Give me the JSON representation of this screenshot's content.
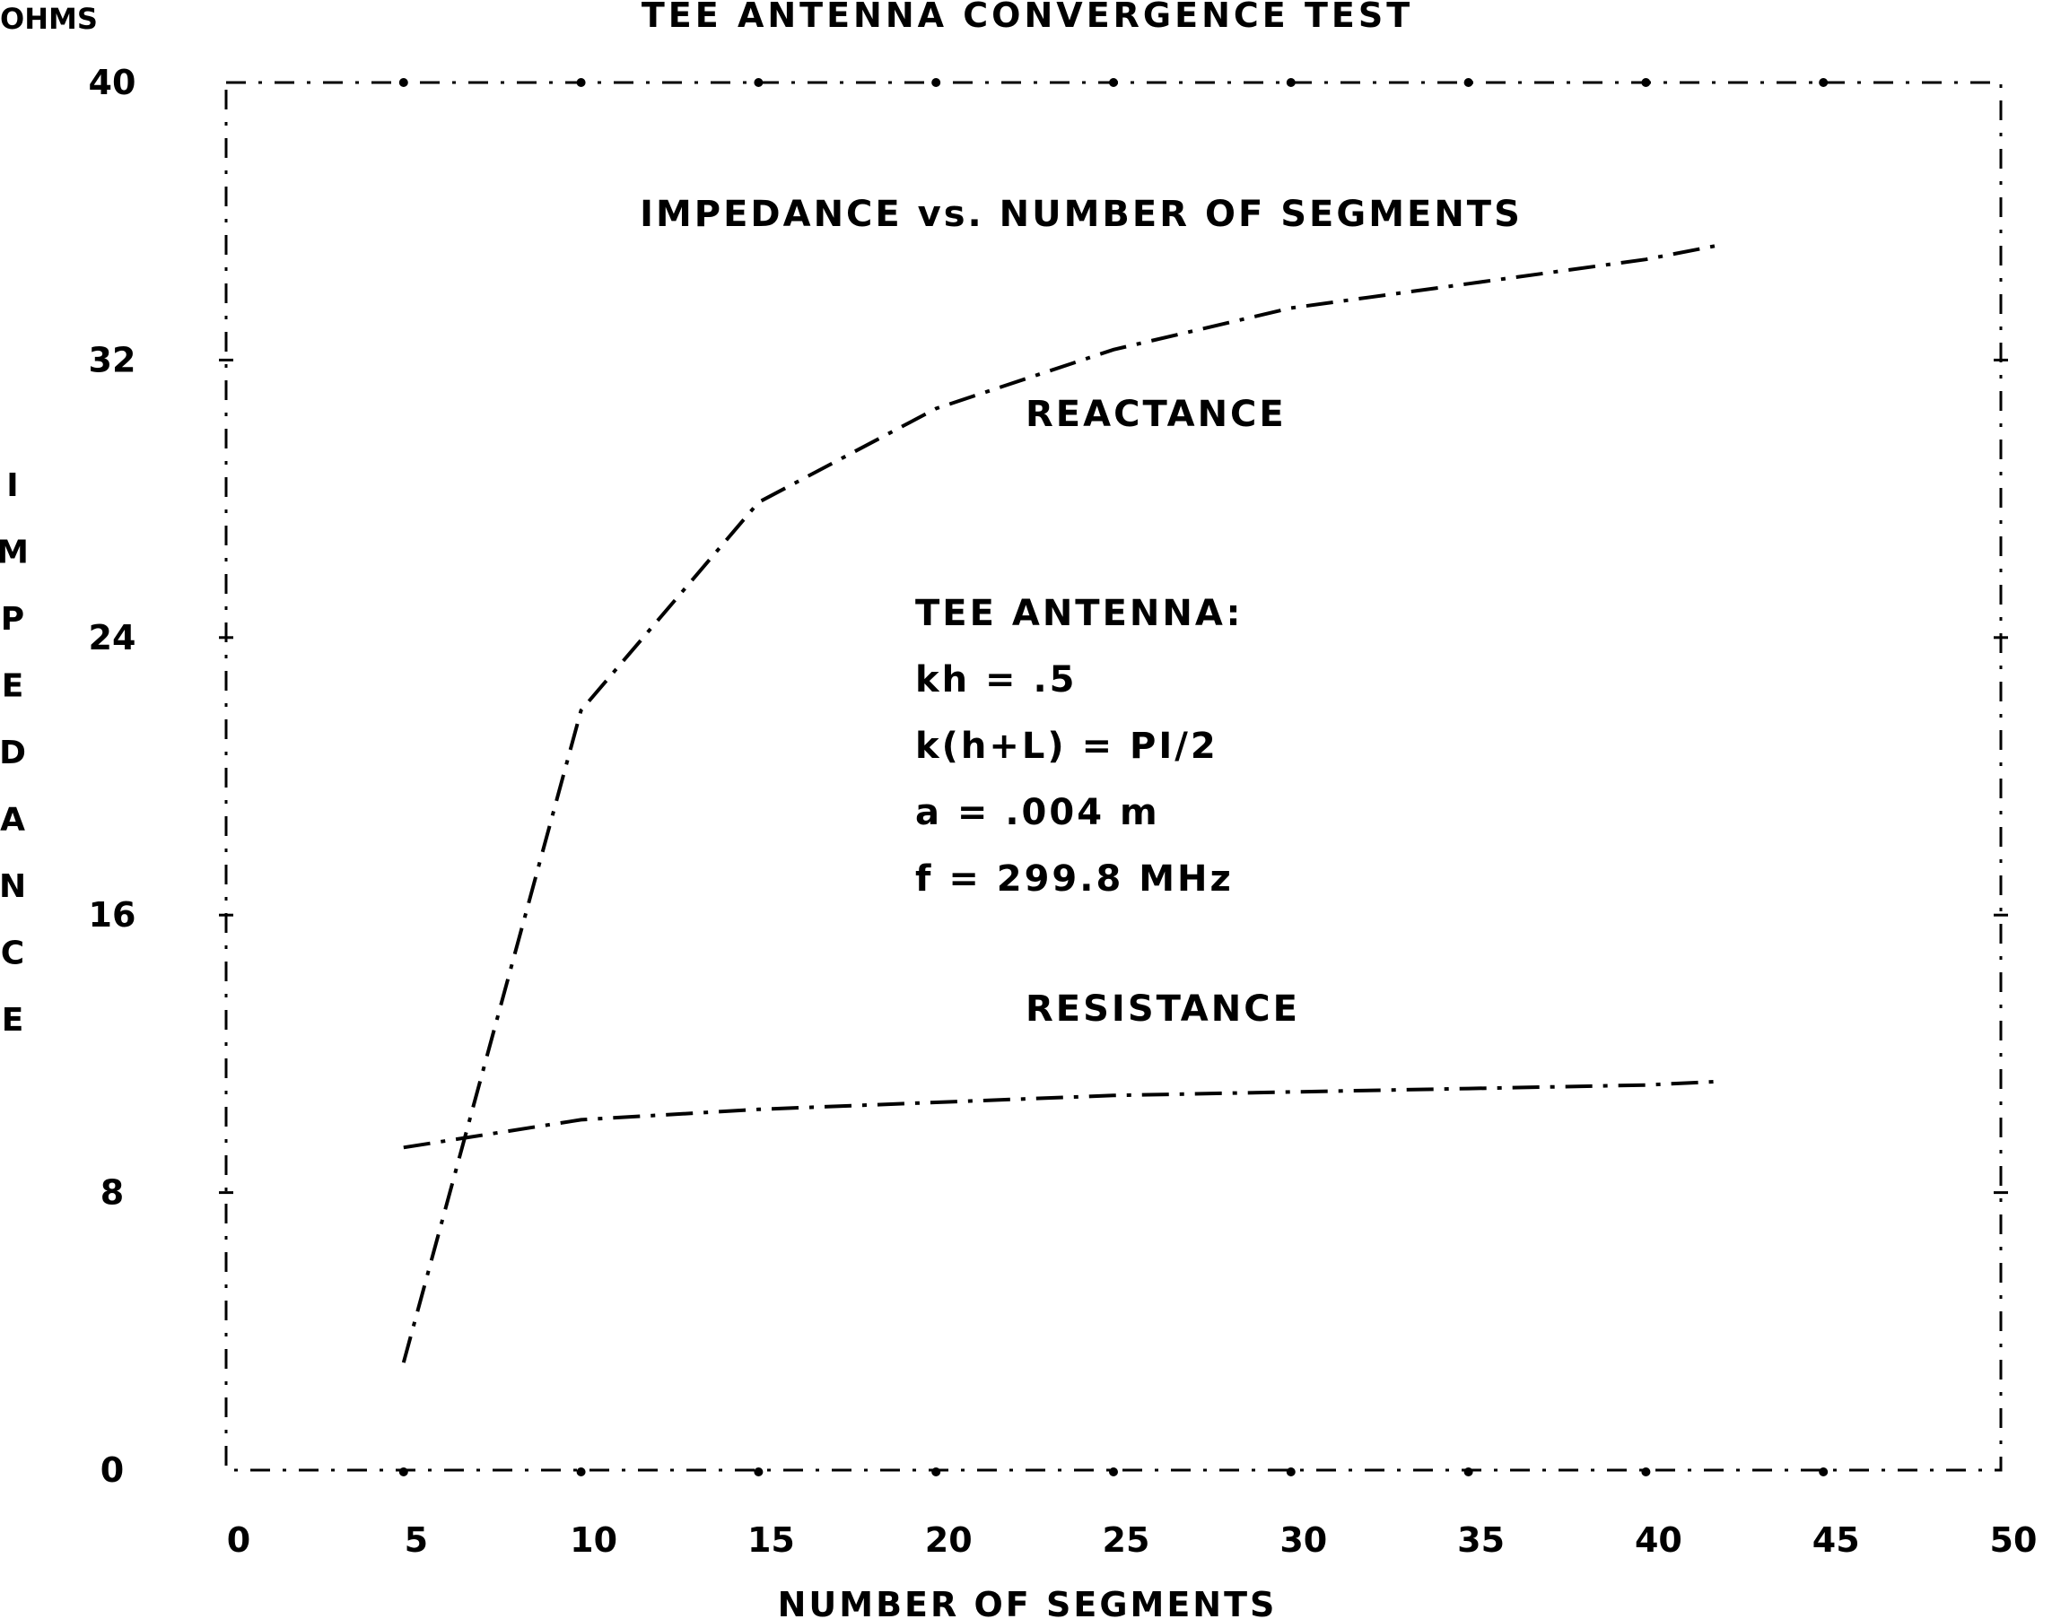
{
  "chart_data": {
    "type": "line",
    "title": "TEE ANTENNA CONVERGENCE TEST",
    "subtitle": "IMPEDANCE vs. NUMBER OF SEGMENTS",
    "xlabel": "NUMBER OF SEGMENTS",
    "ylabel": "IMPEDANCE",
    "yunit": "OHMS",
    "xlim": [
      0,
      50
    ],
    "ylim": [
      0,
      40
    ],
    "xticks": [
      "0",
      "5",
      "10",
      "15",
      "20",
      "25",
      "30",
      "35",
      "40",
      "45",
      "50"
    ],
    "yticks": [
      "0",
      "8",
      "16",
      "24",
      "32",
      "40"
    ],
    "x": [
      5,
      10,
      15,
      20,
      25,
      30,
      35,
      40,
      42
    ],
    "series": [
      {
        "name": "REACTANCE",
        "values": [
          3.1,
          21.9,
          27.9,
          30.6,
          32.3,
          33.5,
          34.2,
          34.9,
          35.3
        ]
      },
      {
        "name": "RESISTANCE",
        "values": [
          9.3,
          10.1,
          10.4,
          10.6,
          10.8,
          10.9,
          11.0,
          11.1,
          11.2
        ]
      }
    ],
    "annotations": [
      "TEE ANTENNA:",
      "kh = .5",
      "k(h+L) = PI/2",
      "a = .004 m",
      "f = 299.8 MHz"
    ],
    "grid": false,
    "legend": "inline labels"
  }
}
